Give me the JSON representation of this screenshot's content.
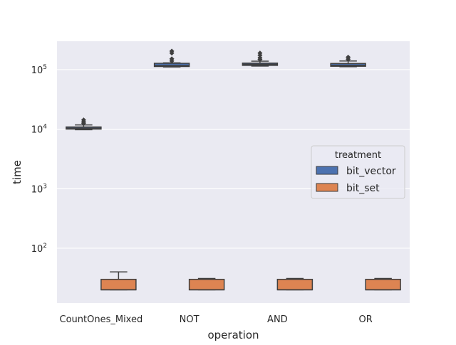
{
  "chart_data": {
    "type": "box",
    "xlabel": "operation",
    "ylabel": "time",
    "yscale": "log",
    "ylim": [
      12,
      300000
    ],
    "grid": true,
    "categories": [
      "CountOnes_Mixed",
      "NOT",
      "AND",
      "OR"
    ],
    "y_ticks": [
      {
        "value": 100,
        "base": "10",
        "exp": "2"
      },
      {
        "value": 1000,
        "base": "10",
        "exp": "3"
      },
      {
        "value": 10000,
        "base": "10",
        "exp": "4"
      },
      {
        "value": 100000,
        "base": "10",
        "exp": "5"
      }
    ],
    "legend": {
      "title": "treatment",
      "placement": "center-right"
    },
    "series": [
      {
        "name": "bit_vector",
        "color": "#4c72b0",
        "boxes": [
          {
            "category": "CountOnes_Mixed",
            "whisker_low": 9800,
            "q1": 10050,
            "median": 10400,
            "q3": 10900,
            "whisker_high": 11800,
            "outliers": [
              12600,
              13300,
              14300
            ]
          },
          {
            "category": "NOT",
            "whisker_low": 111000,
            "q1": 113000,
            "median": 118000,
            "q3": 128000,
            "whisker_high": 130000,
            "outliers": [
              140000,
              152000,
              190000,
              205000
            ]
          },
          {
            "category": "AND",
            "whisker_low": 115000,
            "q1": 118000,
            "median": 123000,
            "q3": 129000,
            "whisker_high": 139000,
            "outliers": [
              148000,
              158000,
              175000,
              190000
            ]
          },
          {
            "category": "OR",
            "whisker_low": 112000,
            "q1": 114000,
            "median": 119000,
            "q3": 127000,
            "whisker_high": 140000,
            "outliers": [
              150000,
              162000
            ]
          }
        ]
      },
      {
        "name": "bit_set",
        "color": "#dd8452",
        "boxes": [
          {
            "category": "CountOnes_Mixed",
            "whisker_low": 20,
            "q1": 20,
            "median": 20,
            "q3": 30,
            "whisker_high": 40,
            "outliers": []
          },
          {
            "category": "NOT",
            "whisker_low": 20,
            "q1": 20,
            "median": 20,
            "q3": 30,
            "whisker_high": 31,
            "outliers": []
          },
          {
            "category": "AND",
            "whisker_low": 20,
            "q1": 20,
            "median": 20,
            "q3": 30,
            "whisker_high": 31,
            "outliers": []
          },
          {
            "category": "OR",
            "whisker_low": 20,
            "q1": 20,
            "median": 20,
            "q3": 30,
            "whisker_high": 31,
            "outliers": []
          }
        ]
      }
    ]
  }
}
